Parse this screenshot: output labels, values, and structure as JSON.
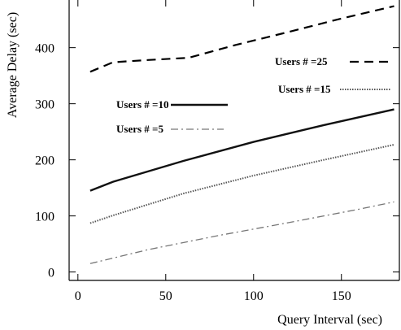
{
  "chart_data": {
    "type": "line",
    "title": "",
    "xlabel": "Query  Interval (sec)",
    "ylabel": "Average Delay (sec)",
    "xlim": [
      -5,
      183
    ],
    "ylim": [
      -15,
      485
    ],
    "xticks": [
      0,
      50,
      100,
      150
    ],
    "yticks": [
      0,
      100,
      200,
      300,
      400
    ],
    "grid": false,
    "legend": "inside plot, near each series",
    "series": [
      {
        "name": "Users # =25",
        "color": "#000000",
        "style": "long-dash",
        "x": [
          7,
          20,
          40,
          63,
          90,
          120,
          150,
          180
        ],
        "y": [
          357,
          374,
          378,
          382,
          405,
          428,
          452,
          474
        ]
      },
      {
        "name": "Users # =15",
        "color": "#555555",
        "style": "fine-dotted",
        "x": [
          7,
          20,
          60,
          100,
          140,
          180
        ],
        "y": [
          87,
          101,
          140,
          172,
          200,
          227
        ]
      },
      {
        "name": "Users # =10",
        "color": "#111111",
        "style": "solid",
        "x": [
          7,
          20,
          60,
          100,
          140,
          180
        ],
        "y": [
          145,
          161,
          198,
          232,
          262,
          290
        ]
      },
      {
        "name": "Users # =5",
        "color": "#777777",
        "style": "dash-dot",
        "x": [
          7,
          40,
          80,
          120,
          160,
          180
        ],
        "y": [
          15,
          40,
          65,
          88,
          112,
          125
        ]
      }
    ]
  }
}
